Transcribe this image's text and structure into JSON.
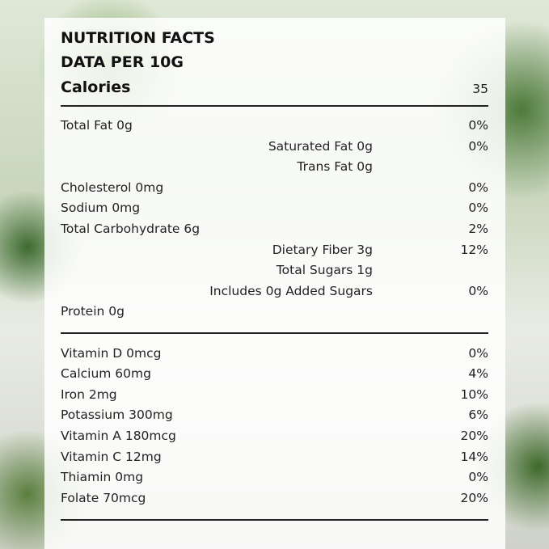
{
  "header": {
    "title": "NUTRITION FACTS",
    "basis": "DATA PER 10G"
  },
  "calories": {
    "label": "Calories",
    "value": "35"
  },
  "sections": [
    {
      "rows": [
        {
          "name": "Total Fat 0g",
          "dv": "0%",
          "sub": [
            {
              "name": "Saturated Fat 0g",
              "dv": "0%"
            },
            {
              "name": "Trans Fat 0g"
            }
          ]
        },
        {
          "name": "Cholesterol 0mg",
          "dv": "0%"
        },
        {
          "name": "Sodium 0mg",
          "dv": "0%"
        },
        {
          "name": "Total Carbohydrate 6g",
          "dv": "2%",
          "sub": [
            {
              "name": "Dietary Fiber 3g",
              "dv": "12%"
            },
            {
              "name": "Total Sugars 1g"
            },
            {
              "name": "Includes 0g Added Sugars",
              "dv": "0%"
            }
          ]
        },
        {
          "name": "Protein 0g"
        }
      ]
    },
    {
      "rows": [
        {
          "name": "Vitamin D 0mcg",
          "dv": "0%"
        },
        {
          "name": "Calcium 60mg",
          "dv": "4%"
        },
        {
          "name": "Iron 2mg",
          "dv": "10%"
        },
        {
          "name": "Potassium 300mg",
          "dv": "6%"
        },
        {
          "name": "Vitamin A 180mcg",
          "dv": "20%"
        },
        {
          "name": "Vitamin C 12mg",
          "dv": "14%"
        },
        {
          "name": "Thiamin 0mg",
          "dv": "0%"
        },
        {
          "name": "Folate 70mcg",
          "dv": "20%"
        }
      ]
    }
  ]
}
